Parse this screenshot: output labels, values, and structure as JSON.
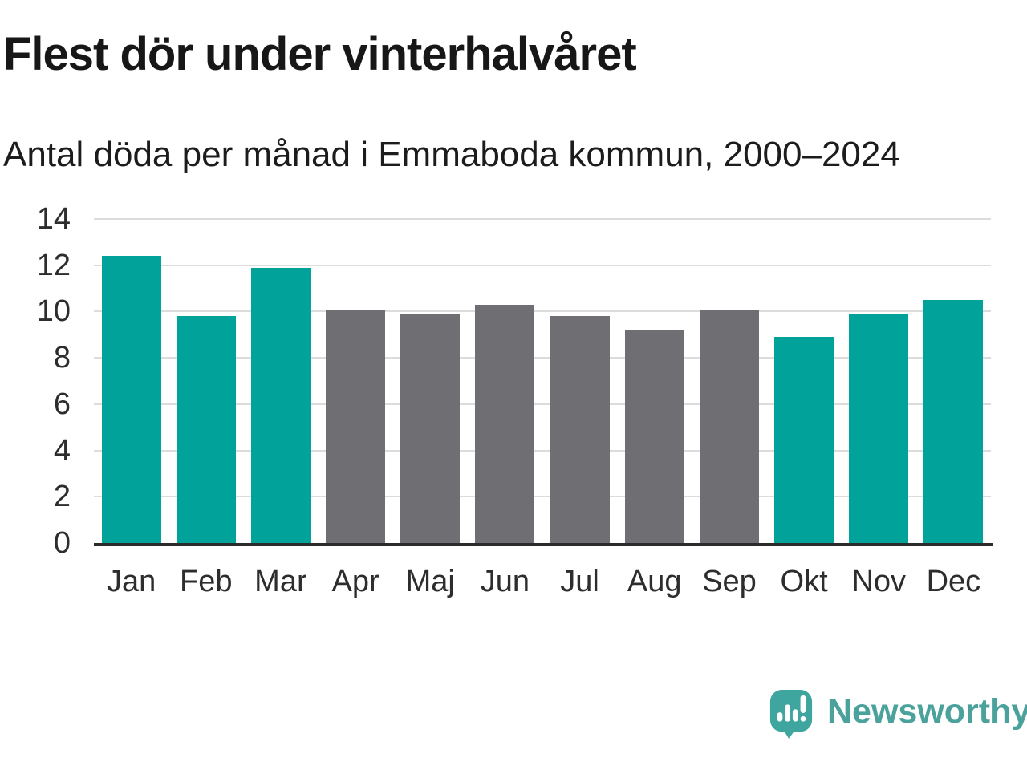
{
  "chart_data": {
    "type": "bar",
    "title": "Flest dör under vinterhalvåret",
    "subtitle": "Antal döda per månad i Emmaboda kommun, 2000–2024",
    "categories": [
      "Jan",
      "Feb",
      "Mar",
      "Apr",
      "Maj",
      "Jun",
      "Jul",
      "Aug",
      "Sep",
      "Okt",
      "Nov",
      "Dec"
    ],
    "values": [
      12.4,
      9.8,
      11.9,
      10.1,
      9.9,
      10.3,
      9.8,
      9.2,
      10.1,
      8.9,
      9.9,
      10.5
    ],
    "bar_colors": [
      "#00a29a",
      "#00a29a",
      "#00a29a",
      "#6e6e73",
      "#6e6e73",
      "#6e6e73",
      "#6e6e73",
      "#6e6e73",
      "#6e6e73",
      "#00a29a",
      "#00a29a",
      "#00a29a"
    ],
    "highlight_color": "#00a29a",
    "muted_color": "#6e6e73",
    "highlighted_categories": [
      "Jan",
      "Feb",
      "Mar",
      "Okt",
      "Nov",
      "Dec"
    ],
    "xlabel": "",
    "ylabel": "",
    "ylim": [
      0,
      14
    ],
    "yticks": [
      0,
      2,
      4,
      6,
      8,
      10,
      12,
      14
    ],
    "grid": true,
    "grid_color": "#dcdcdc",
    "axis_line_color": "#2b2b2b",
    "legend": "none"
  },
  "branding": {
    "name": "Newsworthy",
    "logo_color": "#3ea69e",
    "text_color": "#4ba19c",
    "logo_mark_color": "#ffffff"
  }
}
